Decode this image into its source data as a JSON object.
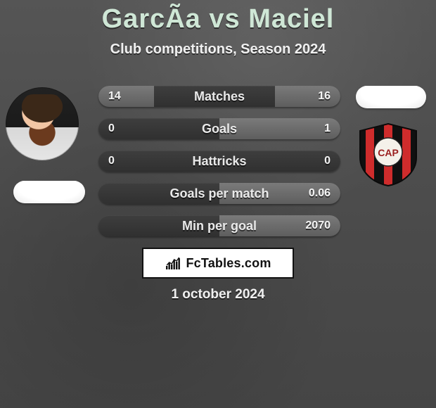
{
  "title": "GarcÃ­a vs Maciel",
  "subtitle": "Club competitions, Season 2024",
  "date": "1 october 2024",
  "brand": "FcTables.com",
  "colors": {
    "title": "#cfe7d6",
    "page_bg": "#505050",
    "row_bg_top": "#3e3e3e",
    "row_bg_bottom": "#303030",
    "fill_top": "#7a7a7a",
    "fill_bottom": "#5e5e5e",
    "text": "#f0f0f0",
    "brand_border": "#111111",
    "brand_bg": "#ffffff"
  },
  "left_player": {
    "values": {
      "matches": "14",
      "goals": "0",
      "hattricks": "0",
      "gpm": "",
      "mpg": ""
    },
    "fill_pct": {
      "matches": 46,
      "goals": 0,
      "hattricks": 0,
      "gpm": 0,
      "mpg": 0
    }
  },
  "right_player": {
    "crest": {
      "base_color": "#101010",
      "stripe_red": "#cf2c2c",
      "ring_color": "#f0f0f0",
      "text": "CAP"
    },
    "values": {
      "matches": "16",
      "goals": "1",
      "hattricks": "0",
      "gpm": "0.06",
      "mpg": "2070"
    },
    "fill_pct": {
      "matches": 54,
      "goals": 100,
      "hattricks": 0,
      "gpm": 100,
      "mpg": 100
    }
  },
  "stats": [
    {
      "key": "matches",
      "label": "Matches"
    },
    {
      "key": "goals",
      "label": "Goals"
    },
    {
      "key": "hattricks",
      "label": "Hattricks"
    },
    {
      "key": "gpm",
      "label": "Goals per match"
    },
    {
      "key": "mpg",
      "label": "Min per goal"
    }
  ],
  "brand_icon_bars": [
    5,
    9,
    7,
    13,
    11,
    16
  ]
}
